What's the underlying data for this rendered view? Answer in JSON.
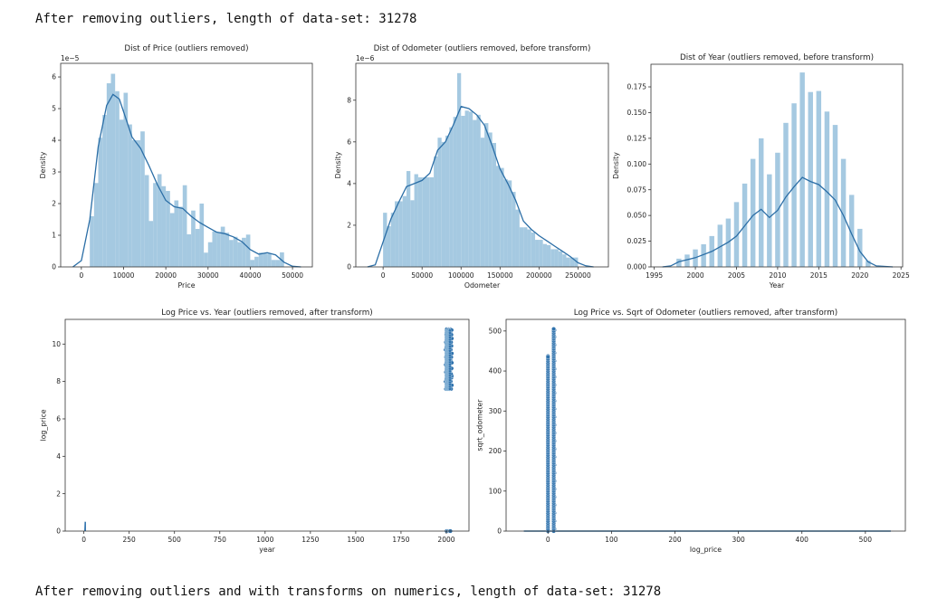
{
  "outputs": {
    "line1": "After removing outliers, length of data-set: 31278",
    "line2": "After removing outliers and with transforms on numerics, length of data-set: 31278"
  },
  "colors": {
    "bar": "#a5c9e1",
    "kde": "#2b6ea6",
    "point": "#2f72ad",
    "point_edge": "#ffffff",
    "axis": "#333333"
  },
  "chart_data": [
    {
      "type": "bar",
      "title": "Dist of Price (outliers removed)",
      "xlabel": "Price",
      "ylabel": "Density",
      "offset_text": "1e−5",
      "xlim": [
        -4900,
        54700
      ],
      "ylim": [
        0,
        6.43
      ],
      "y_scale": 1e-05,
      "xticks": [
        0,
        10000,
        20000,
        30000,
        40000,
        50000
      ],
      "yticks": [
        0,
        1,
        2,
        3,
        4,
        5,
        6
      ],
      "grid": false,
      "bin_start": 2000,
      "bin_width": 1000,
      "values": [
        1.6,
        2.65,
        4.08,
        4.8,
        5.8,
        6.1,
        5.55,
        4.65,
        5.5,
        4.5,
        4.0,
        4.0,
        4.28,
        2.9,
        1.45,
        2.65,
        2.93,
        2.55,
        2.4,
        1.7,
        2.1,
        1.9,
        2.58,
        1.03,
        1.78,
        1.2,
        2.0,
        0.45,
        0.78,
        1.12,
        1.1,
        1.27,
        1.08,
        0.85,
        0.95,
        0.78,
        0.92,
        1.02,
        0.22,
        0.32,
        0.45,
        0.42,
        0.42,
        0.22,
        0.22,
        0.46
      ],
      "kde": [
        [
          -2000,
          0
        ],
        [
          0,
          0.2
        ],
        [
          2000,
          1.5
        ],
        [
          4000,
          3.8
        ],
        [
          6000,
          5.1
        ],
        [
          7500,
          5.45
        ],
        [
          9000,
          5.3
        ],
        [
          10000,
          4.9
        ],
        [
          12000,
          4.1
        ],
        [
          14000,
          3.75
        ],
        [
          16000,
          3.2
        ],
        [
          18000,
          2.6
        ],
        [
          20000,
          2.1
        ],
        [
          22000,
          1.9
        ],
        [
          24000,
          1.85
        ],
        [
          26000,
          1.6
        ],
        [
          28000,
          1.4
        ],
        [
          30000,
          1.25
        ],
        [
          32000,
          1.1
        ],
        [
          34000,
          1.05
        ],
        [
          36000,
          0.95
        ],
        [
          38000,
          0.8
        ],
        [
          40000,
          0.55
        ],
        [
          42000,
          0.4
        ],
        [
          44000,
          0.45
        ],
        [
          46000,
          0.38
        ],
        [
          48000,
          0.15
        ],
        [
          50000,
          0.02
        ],
        [
          52000,
          0
        ]
      ]
    },
    {
      "type": "bar",
      "title": "Dist of Odometer (outliers removed, before transform)",
      "xlabel": "Odometer",
      "ylabel": "Density",
      "offset_text": "1e−6",
      "xlim": [
        -35000,
        289000
      ],
      "ylim": [
        0,
        9.77
      ],
      "y_scale": 1e-06,
      "xticks": [
        0,
        50000,
        100000,
        150000,
        200000,
        250000
      ],
      "yticks": [
        0,
        2,
        4,
        6,
        8
      ],
      "grid": false,
      "bin_start": 0,
      "bin_width": 5000,
      "values": [
        2.6,
        1.95,
        2.6,
        3.15,
        3.15,
        3.4,
        4.6,
        3.2,
        4.45,
        4.3,
        4.3,
        4.3,
        4.3,
        5.3,
        6.2,
        6.0,
        6.3,
        6.7,
        7.2,
        9.3,
        7.25,
        7.5,
        7.45,
        7.05,
        7.3,
        6.2,
        6.9,
        6.45,
        5.95,
        4.85,
        4.75,
        4.2,
        4.15,
        3.6,
        2.75,
        1.9,
        1.9,
        1.8,
        1.65,
        1.3,
        1.3,
        1.1,
        1.05,
        0.85,
        0.85,
        0.75,
        0.6,
        0.45,
        0.45,
        0.45
      ],
      "kde": [
        [
          -20000,
          0
        ],
        [
          -10000,
          0.1
        ],
        [
          0,
          1.2
        ],
        [
          10000,
          2.3
        ],
        [
          20000,
          3.1
        ],
        [
          30000,
          3.85
        ],
        [
          40000,
          4.0
        ],
        [
          50000,
          4.15
        ],
        [
          60000,
          4.5
        ],
        [
          70000,
          5.6
        ],
        [
          80000,
          6.0
        ],
        [
          90000,
          6.8
        ],
        [
          100000,
          7.7
        ],
        [
          110000,
          7.6
        ],
        [
          120000,
          7.3
        ],
        [
          130000,
          6.8
        ],
        [
          140000,
          5.8
        ],
        [
          150000,
          4.7
        ],
        [
          160000,
          4.0
        ],
        [
          170000,
          3.2
        ],
        [
          180000,
          2.2
        ],
        [
          190000,
          1.8
        ],
        [
          200000,
          1.5
        ],
        [
          210000,
          1.25
        ],
        [
          220000,
          1.0
        ],
        [
          230000,
          0.75
        ],
        [
          240000,
          0.5
        ],
        [
          250000,
          0.2
        ],
        [
          260000,
          0.05
        ],
        [
          270000,
          0
        ]
      ]
    },
    {
      "type": "bar",
      "title": "Dist of Year (outliers removed, before transform)",
      "xlabel": "Year",
      "ylabel": "Density",
      "offset_text": "",
      "xlim": [
        1994.6,
        2025.2
      ],
      "ylim": [
        0,
        0.197
      ],
      "y_scale": 1,
      "xticks": [
        1995,
        2000,
        2005,
        2010,
        2015,
        2020,
        2025
      ],
      "yticks": [
        "0.000",
        "0.025",
        "0.050",
        "0.075",
        "0.100",
        "0.125",
        "0.150",
        "0.175"
      ],
      "grid": false,
      "bin_start": 1997.7,
      "bin_width": 1,
      "bar_fraction": 0.6,
      "values": [
        0.008,
        0.012,
        0.017,
        0.022,
        0.03,
        0.041,
        0.047,
        0.063,
        0.081,
        0.105,
        0.125,
        0.09,
        0.111,
        0.14,
        0.159,
        0.189,
        0.17,
        0.171,
        0.151,
        0.138,
        0.105,
        0.07,
        0.037,
        0.006
      ],
      "kde": [
        [
          1996,
          0
        ],
        [
          1997,
          0.001
        ],
        [
          1998,
          0.005
        ],
        [
          2000,
          0.009
        ],
        [
          2002,
          0.015
        ],
        [
          2004,
          0.024
        ],
        [
          2005,
          0.03
        ],
        [
          2006,
          0.04
        ],
        [
          2007,
          0.05
        ],
        [
          2008,
          0.056
        ],
        [
          2009,
          0.048
        ],
        [
          2010,
          0.055
        ],
        [
          2011,
          0.068
        ],
        [
          2012,
          0.078
        ],
        [
          2013,
          0.087
        ],
        [
          2014,
          0.083
        ],
        [
          2015,
          0.08
        ],
        [
          2016,
          0.073
        ],
        [
          2017,
          0.065
        ],
        [
          2018,
          0.05
        ],
        [
          2019,
          0.032
        ],
        [
          2020,
          0.015
        ],
        [
          2021,
          0.005
        ],
        [
          2022,
          0.001
        ],
        [
          2024,
          0
        ]
      ]
    },
    {
      "type": "scatter",
      "title": "Log Price vs. Year (outliers removed, after transform)",
      "xlabel": "year",
      "ylabel": "log_price",
      "offset_text": "",
      "xlim": [
        -103,
        2125
      ],
      "ylim": [
        0,
        11.32
      ],
      "xticks": [
        0,
        250,
        500,
        750,
        1000,
        1250,
        1500,
        1750,
        2000
      ],
      "yticks": [
        0,
        2,
        4,
        6,
        8,
        10
      ],
      "grid": false,
      "points": [
        [
          2008,
          7.6
        ],
        [
          2012,
          7.7
        ],
        [
          2016,
          7.6
        ],
        [
          2020,
          7.8
        ],
        [
          2006,
          8.0
        ],
        [
          2010,
          8.1
        ],
        [
          2014,
          8.0
        ],
        [
          2018,
          8.2
        ],
        [
          2020,
          8.3
        ],
        [
          2008,
          8.5
        ],
        [
          2012,
          8.6
        ],
        [
          2016,
          8.4
        ],
        [
          2019,
          8.7
        ],
        [
          2007,
          8.9
        ],
        [
          2011,
          9.0
        ],
        [
          2015,
          9.1
        ],
        [
          2020,
          9.0
        ],
        [
          2009,
          9.3
        ],
        [
          2013,
          9.4
        ],
        [
          2017,
          9.3
        ],
        [
          2020,
          9.5
        ],
        [
          2006,
          9.7
        ],
        [
          2010,
          9.8
        ],
        [
          2014,
          9.7
        ],
        [
          2018,
          9.9
        ],
        [
          2008,
          10.1
        ],
        [
          2012,
          10.2
        ],
        [
          2016,
          10.1
        ],
        [
          2020,
          10.3
        ],
        [
          2010,
          10.5
        ],
        [
          2014,
          10.6
        ],
        [
          2018,
          10.5
        ],
        [
          2013,
          10.8
        ],
        [
          2019,
          10.75
        ],
        [
          2002,
          0
        ],
        [
          2010,
          0
        ],
        [
          2018,
          0
        ],
        [
          2022,
          0
        ]
      ],
      "line": [
        [
          6,
          0
        ],
        [
          8,
          0.5
        ],
        [
          8,
          0
        ]
      ]
    },
    {
      "type": "scatter",
      "title": "Log Price vs. Sqrt of Odometer (outliers removed, after transform)",
      "xlabel": "log_price",
      "ylabel": "sqrt_odometer",
      "offset_text": "",
      "xlim": [
        -66,
        563
      ],
      "ylim": [
        0,
        529
      ],
      "xticks": [
        0,
        100,
        200,
        300,
        400,
        500
      ],
      "yticks": [
        0,
        100,
        200,
        300,
        400,
        500
      ],
      "grid": false,
      "points": [
        [
          0,
          5
        ],
        [
          0,
          25
        ],
        [
          0,
          45
        ],
        [
          0,
          65
        ],
        [
          0,
          85
        ],
        [
          0,
          105
        ],
        [
          0,
          125
        ],
        [
          0,
          145
        ],
        [
          0,
          165
        ],
        [
          0,
          185
        ],
        [
          0,
          205
        ],
        [
          0,
          225
        ],
        [
          0,
          245
        ],
        [
          0,
          265
        ],
        [
          0,
          285
        ],
        [
          0,
          305
        ],
        [
          0,
          325
        ],
        [
          0,
          345
        ],
        [
          0,
          365
        ],
        [
          0,
          390
        ],
        [
          0,
          420
        ],
        [
          0,
          437
        ],
        [
          10,
          5
        ],
        [
          10,
          25
        ],
        [
          10,
          45
        ],
        [
          10,
          65
        ],
        [
          10,
          85
        ],
        [
          10,
          105
        ],
        [
          10,
          125
        ],
        [
          10,
          145
        ],
        [
          10,
          165
        ],
        [
          10,
          185
        ],
        [
          10,
          205
        ],
        [
          10,
          225
        ],
        [
          10,
          245
        ],
        [
          10,
          265
        ],
        [
          10,
          285
        ],
        [
          10,
          305
        ],
        [
          10,
          325
        ],
        [
          10,
          345
        ],
        [
          10,
          365
        ],
        [
          10,
          385
        ],
        [
          10,
          405
        ],
        [
          10,
          425
        ],
        [
          10,
          445
        ],
        [
          10,
          465
        ],
        [
          10,
          485
        ],
        [
          10,
          502
        ]
      ],
      "line": [
        [
          -38,
          0
        ],
        [
          540,
          0
        ]
      ]
    }
  ]
}
